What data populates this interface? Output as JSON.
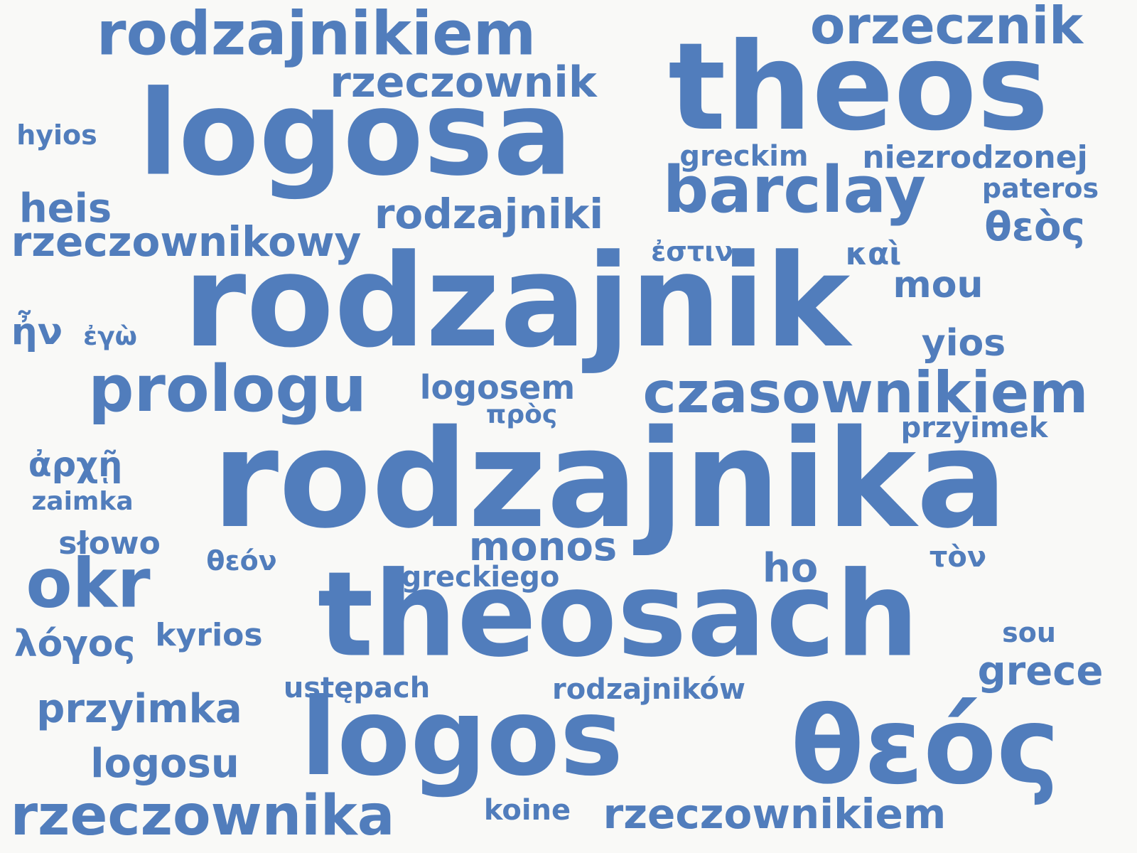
{
  "words": [
    {
      "text": "rodzajnika",
      "weight": 190
    },
    {
      "text": "rodzajnik",
      "weight": 180
    },
    {
      "text": "theos",
      "weight": 170
    },
    {
      "text": "logosa",
      "weight": 165
    },
    {
      "text": "theosach",
      "weight": 165
    },
    {
      "text": "logos",
      "weight": 150
    },
    {
      "text": "θεός",
      "weight": 150
    },
    {
      "text": "rodzajnikiem",
      "weight": 85
    },
    {
      "text": "orzecznik",
      "weight": 72
    },
    {
      "text": "barclay",
      "weight": 90
    },
    {
      "text": "czasownikiem",
      "weight": 80
    },
    {
      "text": "prologu",
      "weight": 90
    },
    {
      "text": "okr",
      "weight": 95
    },
    {
      "text": "rzeczownika",
      "weight": 78
    },
    {
      "text": "rzeczownik",
      "weight": 60
    },
    {
      "text": "rzeczownikowy",
      "weight": 58
    },
    {
      "text": "rodzajniki",
      "weight": 58
    },
    {
      "text": "rzeczownikiem",
      "weight": 58
    },
    {
      "text": "przyimka",
      "weight": 56
    },
    {
      "text": "logosu",
      "weight": 56
    },
    {
      "text": "monos",
      "weight": 56
    },
    {
      "text": "heis",
      "weight": 56
    },
    {
      "text": "grece",
      "weight": 56
    },
    {
      "text": "θεὸς",
      "weight": 56
    },
    {
      "text": "λόγος",
      "weight": 52
    },
    {
      "text": "mou",
      "weight": 52
    },
    {
      "text": "ho",
      "weight": 56
    },
    {
      "text": "yios",
      "weight": 52
    },
    {
      "text": "ἦν",
      "weight": 52
    },
    {
      "text": "ἀρχῇ",
      "weight": 48
    },
    {
      "text": "niezrodzonej",
      "weight": 44
    },
    {
      "text": "logosem",
      "weight": 46
    },
    {
      "text": "słowo",
      "weight": 44
    },
    {
      "text": "kyrios",
      "weight": 44
    },
    {
      "text": "greckiego",
      "weight": 40
    },
    {
      "text": "ustępach",
      "weight": 40
    },
    {
      "text": "rodzajników",
      "weight": 40
    },
    {
      "text": "greckim",
      "weight": 40
    },
    {
      "text": "καὶ",
      "weight": 44
    },
    {
      "text": "przyimek",
      "weight": 40
    },
    {
      "text": "pateros",
      "weight": 38
    },
    {
      "text": "koine",
      "weight": 40
    },
    {
      "text": "hyios",
      "weight": 38
    },
    {
      "text": "zaimka",
      "weight": 36
    },
    {
      "text": "ἐστιν",
      "weight": 38
    },
    {
      "text": "τὸν",
      "weight": 40
    },
    {
      "text": "θεόν",
      "weight": 38
    },
    {
      "text": "ἐγὼ",
      "weight": 36
    },
    {
      "text": "πρὸς",
      "weight": 36
    },
    {
      "text": "sou",
      "weight": 38
    }
  ],
  "colors": {
    "word": "#517dbc",
    "background": "#f9f9f7"
  }
}
